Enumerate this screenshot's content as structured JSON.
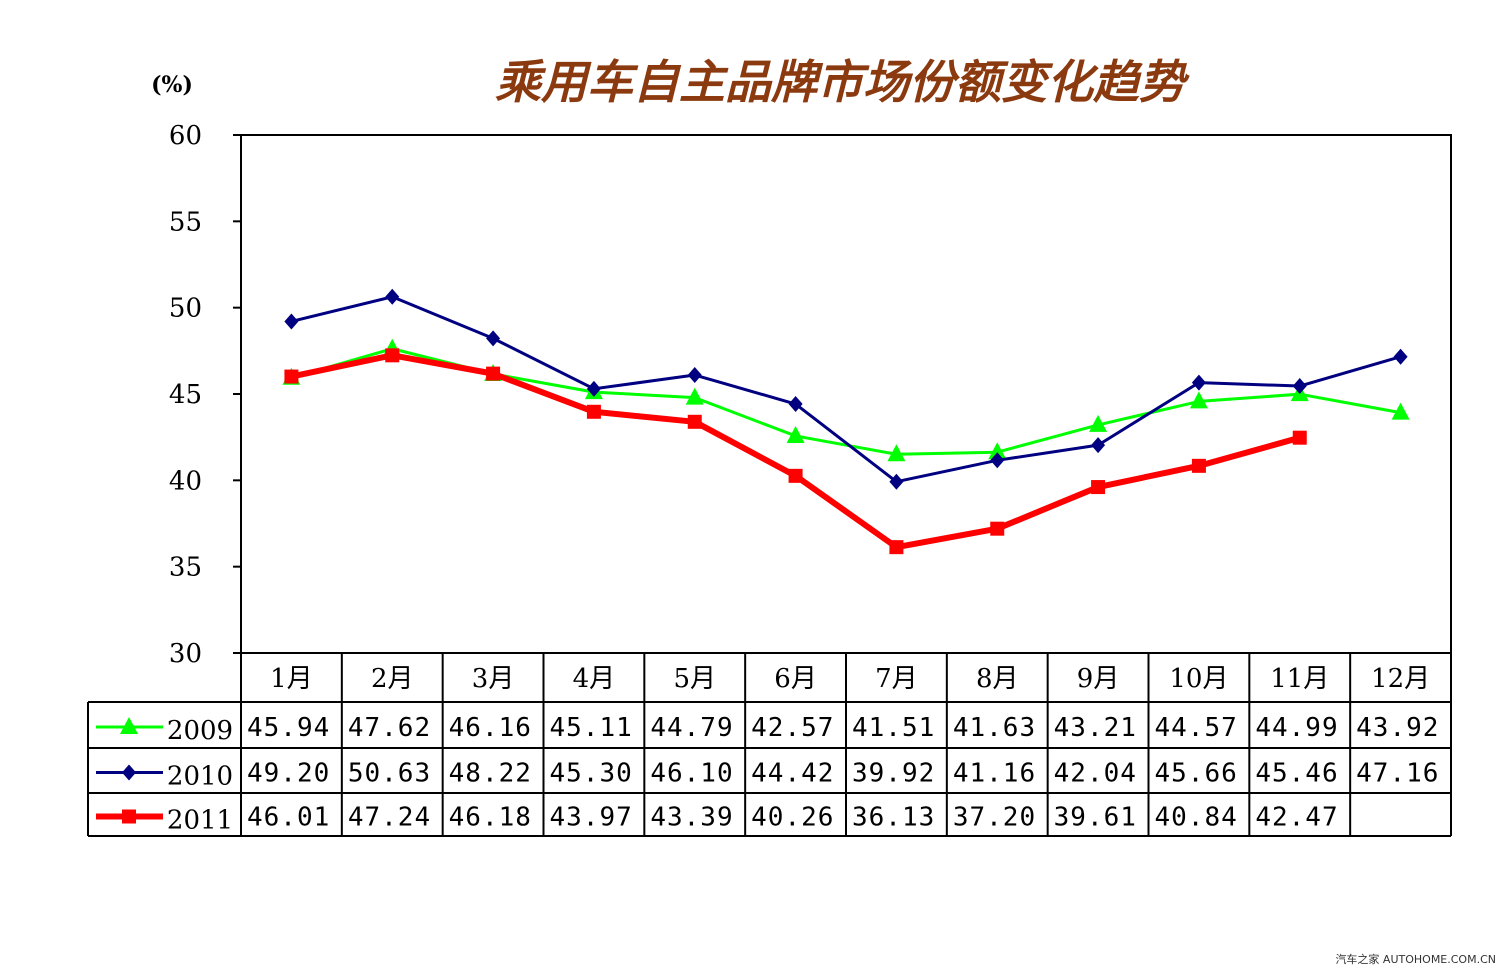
{
  "chart_data": {
    "type": "line",
    "title": "乘用车自主品牌市场份额变化趋势",
    "ylabel": "(%)",
    "xlabel": "",
    "ylim": [
      30,
      60
    ],
    "yticks": [
      "60",
      "55",
      "50",
      "45",
      "40",
      "35",
      "30"
    ],
    "categories": [
      "1月",
      "2月",
      "3月",
      "4月",
      "5月",
      "6月",
      "7月",
      "8月",
      "9月",
      "10月",
      "11月",
      "12月"
    ],
    "legend_placement": "table-left",
    "grid": false,
    "series": [
      {
        "name": "2009",
        "color": "#00ff00",
        "marker": "triangle",
        "values": [
          45.94,
          47.62,
          46.16,
          45.11,
          44.79,
          42.57,
          41.51,
          41.63,
          43.21,
          44.57,
          44.99,
          43.92
        ],
        "labels": [
          "45.94",
          "47.62",
          "46.16",
          "45.11",
          "44.79",
          "42.57",
          "41.51",
          "41.63",
          "43.21",
          "44.57",
          "44.99",
          "43.92"
        ]
      },
      {
        "name": "2010",
        "color": "#000080",
        "marker": "diamond",
        "values": [
          49.2,
          50.63,
          48.22,
          45.3,
          46.1,
          44.42,
          39.92,
          41.16,
          42.04,
          45.66,
          45.46,
          47.16
        ],
        "labels": [
          "49.20",
          "50.63",
          "48.22",
          "45.30",
          "46.10",
          "44.42",
          "39.92",
          "41.16",
          "42.04",
          "45.66",
          "45.46",
          "47.16"
        ]
      },
      {
        "name": "2011",
        "color": "#ff0000",
        "marker": "square",
        "values": [
          46.01,
          47.24,
          46.18,
          43.97,
          43.39,
          40.26,
          36.13,
          37.2,
          39.61,
          40.84,
          42.47,
          null
        ],
        "labels": [
          "46.01",
          "47.24",
          "46.18",
          "43.97",
          "43.39",
          "40.26",
          "36.13",
          "37.20",
          "39.61",
          "40.84",
          "42.47",
          ""
        ]
      }
    ]
  },
  "colors": {
    "title": "#8b3a0f",
    "axis": "#000000"
  },
  "watermark": "汽车之家 AUTOHOME.COM.CN"
}
